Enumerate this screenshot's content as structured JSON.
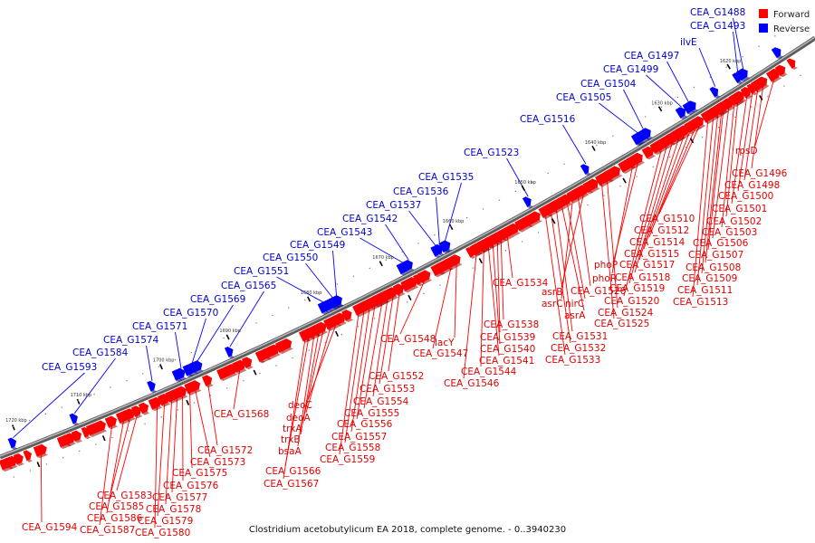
{
  "caption": "Clostridium acetobutylicum EA 2018, complete genome. - 0..3940230",
  "legend": [
    {
      "label": "Forward",
      "color": "#ff0000"
    },
    {
      "label": "Reverse",
      "color": "#0000ff"
    }
  ],
  "colors": {
    "forward": "#ff0000",
    "reverse": "#0000ff",
    "backbone": "#7a7a7a"
  },
  "kbp_ticks": [
    "1620 kbp",
    "1630 kbp",
    "1640 kbp",
    "1650 kbp",
    "1660 kbp",
    "1670 kbp",
    "1680 kbp",
    "1690 kbp",
    "1700 kbp",
    "1710 kbp",
    "1720 kbp"
  ],
  "forward_labels": [
    "rpsD",
    "CEA_G1496",
    "CEA_G1498",
    "CEA_G1500",
    "CEA_G1501",
    "CEA_G1502",
    "CEA_G1503",
    "CEA_G1506",
    "CEA_G1507",
    "CEA_G1508",
    "CEA_G1509",
    "CEA_G1511",
    "CEA_G1513",
    "CEA_G1510",
    "CEA_G1512",
    "CEA_G1514",
    "CEA_G1515",
    "CEA_G1517",
    "CEA_G1518",
    "CEA_G1519",
    "CEA_G1520",
    "phoP",
    "phoR",
    "CEA_G1524",
    "CEA_G1525",
    "asrB",
    "CEA_G1526",
    "asrC",
    "nirC",
    "asrA",
    "CEA_G1531",
    "CEA_G1532",
    "CEA_G1533",
    "CEA_G1534",
    "CEA_G1538",
    "CEA_G1539",
    "CEA_G1540",
    "CEA_G1541",
    "CEA_G1544",
    "CEA_G1546",
    "lacY",
    "CEA_G1547",
    "CEA_G1548",
    "CEA_G1552",
    "CEA_G1553",
    "CEA_G1554",
    "CEA_G1555",
    "CEA_G1556",
    "CEA_G1557",
    "CEA_G1558",
    "CEA_G1559",
    "deoC",
    "deoA",
    "trxA",
    "trxB",
    "bsaA",
    "CEA_G1566",
    "CEA_G1567",
    "CEA_G1568",
    "CEA_G1572",
    "CEA_G1573",
    "CEA_G1575",
    "CEA_G1576",
    "CEA_G1577",
    "CEA_G1578",
    "CEA_G1579",
    "CEA_G1580",
    "CEA_G1583",
    "CEA_G1585",
    "CEA_G1586",
    "CEA_G1587",
    "CEA_G1594"
  ],
  "reverse_labels": [
    "CEA_G1488",
    "CEA_G1493",
    "ilvE",
    "CEA_G1497",
    "CEA_G1499",
    "CEA_G1504",
    "CEA_G1505",
    "CEA_G1516",
    "CEA_G1523",
    "CEA_G1535",
    "CEA_G1536",
    "CEA_G1537",
    "CEA_G1542",
    "CEA_G1543",
    "CEA_G1549",
    "CEA_G1550",
    "CEA_G1551",
    "CEA_G1565",
    "CEA_G1569",
    "CEA_G1570",
    "CEA_G1571",
    "CEA_G1574",
    "CEA_G1584",
    "CEA_G1593"
  ]
}
